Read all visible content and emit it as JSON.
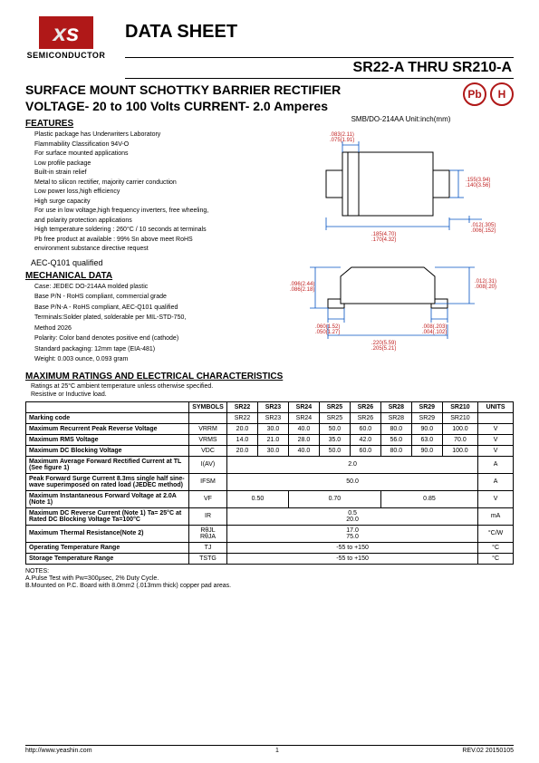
{
  "header": {
    "logo_text_1": "x",
    "logo_text_2": "s",
    "company": "SEMICONDUCTOR",
    "datasheet": "DATA SHEET",
    "partno": "SR22-A THRU SR210-A",
    "pb_icon": "Pb",
    "h_icon": "H"
  },
  "subtitle": {
    "line1": "SURFACE MOUNT SCHOTTKY BARRIER RECTIFIER",
    "line2": "VOLTAGE- 20 to 100 Volts CURRENT- 2.0 Amperes"
  },
  "package_label": "SMB/DO-214AA    Unit:inch(mm)",
  "features_title": "FEATURES",
  "features": [
    "Plastic package has Underwriters Laboratory",
    "Flammability Classification 94V-O",
    "For surface mounted applications",
    "Low profile package",
    "Built-in strain relief",
    "Metal to silicon rectifier, majority carrier conduction",
    "Low power loss,high efficiency",
    "High surge capacity",
    "For use in low voltage,high frequency inverters, free wheeling,",
    "and polarity protection applications",
    "High temperature soldering : 260°C / 10 seconds at terminals",
    "Pb free product at available : 99% Sn above meet RoHS",
    "environment substance directive request"
  ],
  "aec": "AEC-Q101 qualified",
  "mech_title": "MECHANICAL DATA",
  "mech": [
    "Case: JEDEC DO-214AA molded plastic",
    "Base  P/N  -  RoHS  compliant,  commercial  grade",
    "Base P/N-A - RoHS compliant, AEC-Q101 qualified",
    "Terminals:Solder plated, solderable per MIL-STD-750,",
    "Method 2026",
    "Polarity: Color band denotes positive end (cathode)",
    "Standard packaging: 12mm tape (EIA-481)",
    "Weight: 0.003 ounce, 0.093 gram"
  ],
  "diagram": {
    "dims": [
      ".083(2.11)",
      ".075(1.91)",
      ".155(3.94)",
      ".140(3.56)",
      ".185(4.70)",
      ".170(4.32)",
      ".012(.305)",
      ".006(.152)",
      ".096(2.44)",
      ".086(2.18)",
      ".060(1.52)",
      ".050(1.27)",
      ".008(.203)",
      ".004(.102)",
      ".012(.31)",
      ".008(.20)",
      ".220(5.59)",
      ".205(5.21)"
    ],
    "colors": {
      "dim_line": "#0050c0",
      "dim_text": "#c02020",
      "outline": "#000000"
    }
  },
  "ratings_title": "MAXIMUM RATINGS AND ELECTRICAL CHARACTERISTICS",
  "ratings_note1": "Ratings at 25°C ambient temperature unless otherwise specified.",
  "ratings_note2": "Resistive or Inductive load.",
  "table": {
    "headers": [
      "",
      "SYMBOLS",
      "SR22",
      "SR23",
      "SR24",
      "SR25",
      "SR26",
      "SR28",
      "SR29",
      "SR210",
      "UNITS"
    ],
    "rows": [
      {
        "label": "Marking code",
        "symbol": "",
        "cells": [
          "SR22",
          "SR23",
          "SR24",
          "SR25",
          "SR26",
          "SR28",
          "SR29",
          "SR210"
        ],
        "units": ""
      },
      {
        "label": "Maximum Recurrent Peak Reverse Voltage",
        "symbol": "VRRM",
        "cells": [
          "20.0",
          "30.0",
          "40.0",
          "50.0",
          "60.0",
          "80.0",
          "90.0",
          "100.0"
        ],
        "units": "V"
      },
      {
        "label": "Maximum RMS Voltage",
        "symbol": "VRMS",
        "cells": [
          "14.0",
          "21.0",
          "28.0",
          "35.0",
          "42.0",
          "56.0",
          "63.0",
          "70.0"
        ],
        "units": "V"
      },
      {
        "label": "Maximum DC Blocking Voltage",
        "symbol": "VDC",
        "cells": [
          "20.0",
          "30.0",
          "40.0",
          "50.0",
          "60.0",
          "80.0",
          "90.0",
          "100.0"
        ],
        "units": "V"
      },
      {
        "label": "Maximum Average Forward Rectified Current at TL (See figure 1)",
        "symbol": "I(AV)",
        "merged": "2.0",
        "units": "A"
      },
      {
        "label": "Peak Forward Surge Current 8.3ms single half sine-wave superimposed on rated load (JEDEC method)",
        "symbol": "IFSM",
        "merged": "50.0",
        "units": "A"
      },
      {
        "label": "Maximum Instantaneous Forward Voltage at 2.0A (Note 1)",
        "symbol": "VF",
        "groups": [
          "0.50",
          "0.70",
          "0.85"
        ],
        "group_spans": [
          2,
          3,
          3
        ],
        "units": "V"
      },
      {
        "label": "Maximum DC Reverse Current (Note 1) Ta= 25°C at Rated DC Blocking Voltage Ta=100°C",
        "symbol": "IR",
        "stacked": [
          "0.5",
          "20.0"
        ],
        "units": "mA"
      },
      {
        "label": "Maximum Thermal Resistance(Note 2)",
        "symbol": "RθJL\nRθJA",
        "stacked": [
          "17.0",
          "75.0"
        ],
        "units": "°C/W"
      },
      {
        "label": "Operating Temperature Range",
        "symbol": "TJ",
        "merged": "-55 to +150",
        "units": "°C"
      },
      {
        "label": "Storage Temperature Range",
        "symbol": "TSTG",
        "merged": "-55 to +150",
        "units": "°C"
      }
    ]
  },
  "notes_title": "NOTES:",
  "notes": [
    "A.Pulse Test with Pw=300μsec, 2% Duty Cycle.",
    "B.Mounted on P.C. Board with 8.0mm2 (.013mm thick) copper pad areas."
  ],
  "footer": {
    "url": "http://www.yeashin.com",
    "page": "1",
    "rev": "REV.02 20150105"
  }
}
